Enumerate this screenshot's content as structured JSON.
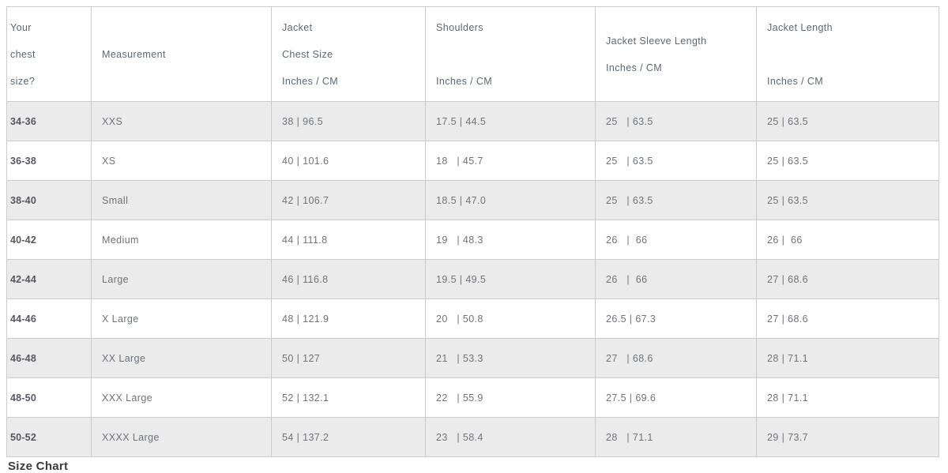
{
  "colors": {
    "alt_row_bg": "#ebebeb",
    "border": "#cbcbcb",
    "cell_text": "#6e747b",
    "chest_col_text": "#55595f",
    "header_text": "#5e6872",
    "heading_text": "#3c3c3c"
  },
  "table": {
    "columns": [
      {
        "id": "your-chest-size",
        "label": "Your chest size?",
        "lines": [
          "Your",
          "chest",
          "size?"
        ]
      },
      {
        "id": "measurement",
        "label": "Measurement",
        "lines": [
          "Measurement"
        ]
      },
      {
        "id": "jacket-chest-size",
        "label": "Jacket Chest Size Inches / CM",
        "lines": [
          "Jacket",
          "Chest Size",
          "Inches / CM"
        ]
      },
      {
        "id": "shoulders",
        "label": "Shoulders Inches / CM",
        "lines": [
          "Shoulders",
          "",
          "Inches / CM"
        ]
      },
      {
        "id": "jacket-sleeve-length",
        "label": "Jacket Sleeve Length Inches / CM",
        "lines": [
          "Jacket Sleeve Length",
          "Inches / CM"
        ]
      },
      {
        "id": "jacket-length",
        "label": "Jacket Length Inches / CM",
        "lines": [
          "Jacket Length",
          "",
          "Inches / CM"
        ]
      }
    ],
    "rows": [
      {
        "cells": [
          "34-36",
          "XXS",
          "38 | 96.5",
          "17.5 | 44.5",
          "25   | 63.5",
          "25 | 63.5"
        ]
      },
      {
        "cells": [
          "36-38",
          "XS",
          "40 | 101.6",
          "18   | 45.7",
          "25   | 63.5",
          "25 | 63.5"
        ]
      },
      {
        "cells": [
          "38-40",
          "Small",
          "42 | 106.7",
          "18.5 | 47.0",
          "25   | 63.5",
          "25 | 63.5"
        ]
      },
      {
        "cells": [
          "40-42",
          "Medium",
          "44 | 111.8",
          "19   | 48.3",
          "26   |  66",
          "26 |  66"
        ]
      },
      {
        "cells": [
          "42-44",
          "Large",
          "46 | 116.8",
          "19.5 | 49.5",
          "26   |  66",
          "27 | 68.6"
        ]
      },
      {
        "cells": [
          "44-46",
          "X Large",
          "48 | 121.9",
          "20   | 50.8",
          "26.5 | 67.3",
          "27 | 68.6"
        ]
      },
      {
        "cells": [
          "46-48",
          "XX Large",
          "50 | 127",
          "21   | 53.3",
          "27   | 68.6",
          "28 | 71.1"
        ]
      },
      {
        "cells": [
          "48-50",
          "XXX Large",
          "52 | 132.1",
          "22   | 55.9",
          "27.5 | 69.6",
          "28 | 71.1"
        ]
      },
      {
        "cells": [
          "50-52",
          "XXXX Large",
          "54 | 137.2",
          "23   | 58.4",
          "28   | 71.1",
          "29 | 73.7"
        ]
      }
    ]
  },
  "footer": {
    "heading": "Size Chart"
  }
}
